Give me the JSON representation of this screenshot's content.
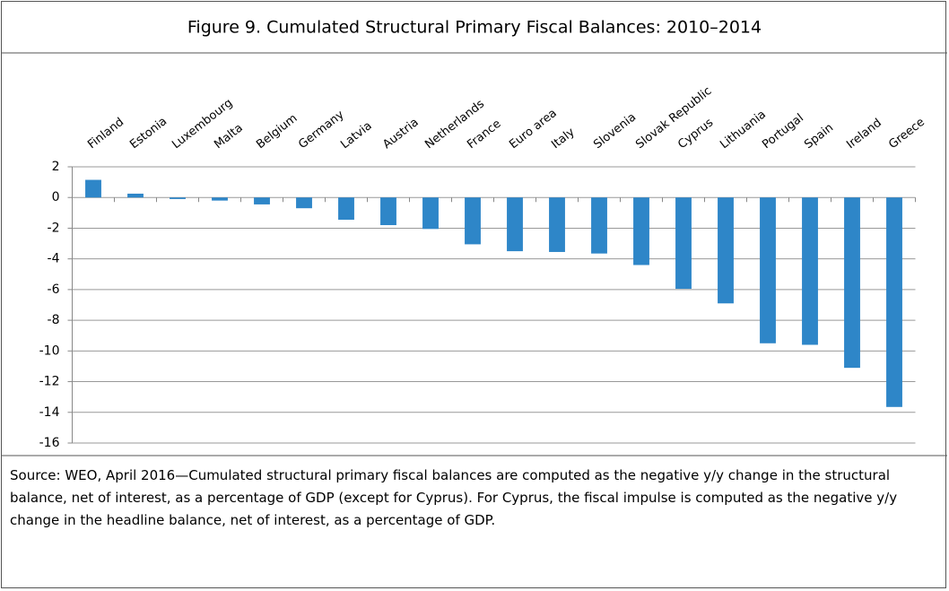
{
  "chart_data": {
    "type": "bar",
    "title": "Figure 9. Cumulated Structural Primary Fiscal Balances: 2010–2014",
    "categories": [
      "Finland",
      "Estonia",
      "Luxembourg",
      "Malta",
      "Belgium",
      "Germany",
      "Latvia",
      "Austria",
      "Netherlands",
      "France",
      "Euro area",
      "Italy",
      "Slovenia",
      "Slovak Republic",
      "Cyprus",
      "Lithuania",
      "Portugal",
      "Spain",
      "Ireland",
      "Greece"
    ],
    "values": [
      1.15,
      0.25,
      -0.1,
      -0.2,
      -0.45,
      -0.7,
      -1.45,
      -1.8,
      -2.05,
      -3.05,
      -3.5,
      -3.55,
      -3.65,
      -4.4,
      -5.95,
      -6.9,
      -9.5,
      -9.6,
      -11.1,
      -13.65
    ],
    "color": "#2e86c8",
    "ylim": [
      -16,
      2
    ],
    "yticks": [
      -16,
      -14,
      -12,
      -10,
      -8,
      -6,
      -4,
      -2,
      0,
      2
    ],
    "grid": true,
    "note": "Source: WEO, April 2016—Cumulated structural primary fiscal balances are computed as the negative y/y change in the structural balance, net of interest, as a percentage of GDP (except for Cyprus). For Cyprus, the fiscal impulse is computed as the negative y/y change in the headline balance, net of interest, as a percentage of GDP."
  }
}
